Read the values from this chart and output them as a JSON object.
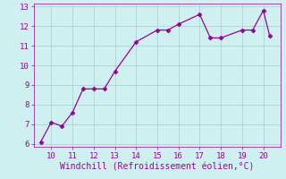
{
  "x": [
    9.5,
    10,
    10.5,
    11,
    11.5,
    12,
    12.5,
    13,
    14,
    15,
    15.5,
    16,
    17,
    17.5,
    18,
    19,
    19.5,
    20,
    20.3
  ],
  "y": [
    6.1,
    7.1,
    6.9,
    7.6,
    8.8,
    8.8,
    8.8,
    9.7,
    11.2,
    11.8,
    11.8,
    12.1,
    12.6,
    11.4,
    11.4,
    11.8,
    11.8,
    12.8,
    11.5
  ],
  "line_color": "#990099",
  "marker": "D",
  "marker_size": 2.5,
  "bg_color": "#cff0f0",
  "grid_color": "#aacccc",
  "xlabel": "Windchill (Refroidissement éolien,°C)",
  "xlim": [
    9.2,
    20.8
  ],
  "ylim": [
    5.85,
    13.15
  ],
  "xticks": [
    10,
    11,
    12,
    13,
    14,
    15,
    16,
    17,
    18,
    19,
    20
  ],
  "yticks": [
    6,
    7,
    8,
    9,
    10,
    11,
    12,
    13
  ],
  "tick_color": "#990099",
  "label_color": "#990099",
  "tick_fontsize": 6.5,
  "xlabel_fontsize": 7
}
